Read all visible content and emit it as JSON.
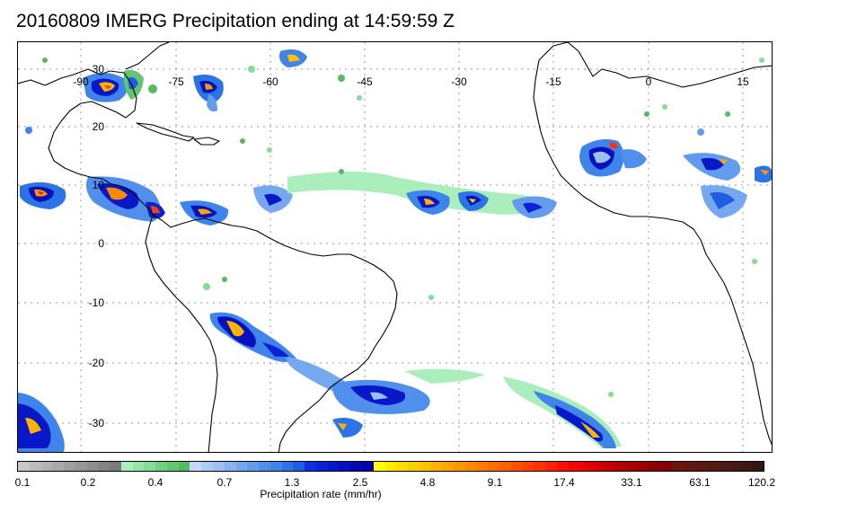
{
  "title": "20160809 IMERG Precipitation ending at 14:59:59 Z",
  "map": {
    "longitude_labels": [
      "-90",
      "-75",
      "-60",
      "-45",
      "-30",
      "-15",
      "0",
      "15"
    ],
    "latitude_labels": [
      "30",
      "20",
      "10",
      "0",
      "-10",
      "-20",
      "-30"
    ],
    "grid": "dotted"
  },
  "colorbar": {
    "caption": "Precipitation rate (mm/hr)",
    "tick_labels": [
      "0.1",
      "0.2",
      "0.4",
      "0.7",
      "1.3",
      "2.5",
      "4.8",
      "9.1",
      "17.4",
      "33.1",
      "63.1",
      "120.2"
    ],
    "colors": [
      "#c8c8c8",
      "#bdbdbd",
      "#b3b3b3",
      "#a9a9a9",
      "#9f9f9f",
      "#969696",
      "#8d8d8d",
      "#848484",
      "#7b7b7b",
      "#aaeebb",
      "#96e6a6",
      "#84dd94",
      "#70d080",
      "#62c570",
      "#58b963",
      "#c4d8f6",
      "#b0ccf4",
      "#9cc0f2",
      "#89b4f2",
      "#76a8f0",
      "#639cee",
      "#5090ec",
      "#3e84ea",
      "#2c74e6",
      "#1e5ee2",
      "#0f2ee0",
      "#0a22d4",
      "#0818c8",
      "#0610bc",
      "#0408b0",
      "#0000a8",
      "#ffff00",
      "#ffeb00",
      "#ffdd00",
      "#ffcf00",
      "#ffc100",
      "#ffb300",
      "#ffa500",
      "#ff9700",
      "#ff8a00",
      "#ff7c00",
      "#ff6e00",
      "#ff6000",
      "#ff5200",
      "#ff4200",
      "#ff3200",
      "#ff2200",
      "#ff1000",
      "#ff0000",
      "#e80000",
      "#d60000",
      "#c40000",
      "#b20000",
      "#a60000",
      "#9a0000",
      "#8e0000",
      "#820000",
      "#6e1410",
      "#661612",
      "#5e1812",
      "#561a14",
      "#4e1a14",
      "#461a14",
      "#3e1812",
      "#361410"
    ]
  }
}
